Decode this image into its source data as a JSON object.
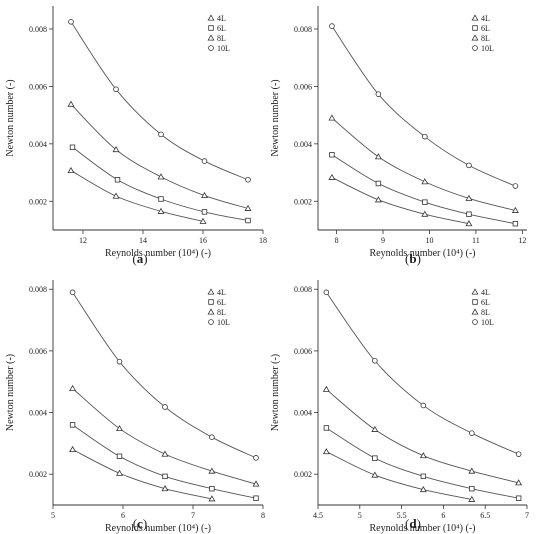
{
  "chart_data": [
    {
      "type": "line",
      "caption": "(a)",
      "xlabel": "Reynolds number (10⁴) (-)",
      "ylabel": "Newton number (-)",
      "xlim": [
        11,
        18
      ],
      "ylim": [
        0.001,
        0.0088
      ],
      "xticks": [
        "12",
        "14",
        "16",
        "18"
      ],
      "xtick_values": [
        12,
        14,
        16,
        18
      ],
      "yticks": [
        "0.002",
        "0.004",
        "0.006",
        "0.008"
      ],
      "ytick_values": [
        0.002,
        0.004,
        0.006,
        0.008
      ],
      "legend_position": "top-right",
      "series": [
        {
          "name": "4L",
          "marker": "triangle",
          "x": [
            11.6,
            13.1,
            14.6,
            16.0
          ],
          "y": [
            0.00307,
            0.00218,
            0.00165,
            0.0013
          ]
        },
        {
          "name": "6L",
          "marker": "square",
          "x": [
            11.65,
            13.15,
            14.6,
            16.05,
            17.5
          ],
          "y": [
            0.00388,
            0.00275,
            0.00208,
            0.00163,
            0.00133
          ]
        },
        {
          "name": "8L",
          "marker": "triangle",
          "x": [
            11.6,
            13.1,
            14.6,
            16.05,
            17.5
          ],
          "y": [
            0.00538,
            0.0038,
            0.00285,
            0.0022,
            0.00175
          ]
        },
        {
          "name": "10L",
          "marker": "circle",
          "x": [
            11.6,
            13.1,
            14.6,
            16.05,
            17.5
          ],
          "y": [
            0.00825,
            0.0059,
            0.00433,
            0.0034,
            0.00275
          ]
        }
      ]
    },
    {
      "type": "line",
      "caption": "(b)",
      "xlabel": "Reynolds number (10⁴) (-)",
      "ylabel": "Newton number (-)",
      "xlim": [
        7.6,
        12.1
      ],
      "ylim": [
        0.001,
        0.0088
      ],
      "xticks": [
        "8",
        "9",
        "10",
        "11",
        "12"
      ],
      "xtick_values": [
        8,
        9,
        10,
        11,
        12
      ],
      "yticks": [
        "0.002",
        "0.004",
        "0.006",
        "0.008"
      ],
      "ytick_values": [
        0.002,
        0.004,
        0.006,
        0.008
      ],
      "legend_position": "top-right",
      "series": [
        {
          "name": "4L",
          "marker": "triangle",
          "x": [
            7.9,
            8.9,
            9.9,
            10.85
          ],
          "y": [
            0.00283,
            0.00205,
            0.00155,
            0.00122
          ]
        },
        {
          "name": "6L",
          "marker": "square",
          "x": [
            7.9,
            8.9,
            9.9,
            10.85,
            11.85
          ],
          "y": [
            0.00362,
            0.00262,
            0.00197,
            0.00155,
            0.00122
          ]
        },
        {
          "name": "8L",
          "marker": "triangle",
          "x": [
            7.9,
            8.9,
            9.9,
            10.85,
            11.85
          ],
          "y": [
            0.0049,
            0.00355,
            0.00268,
            0.0021,
            0.00168
          ]
        },
        {
          "name": "10L",
          "marker": "circle",
          "x": [
            7.9,
            8.9,
            9.9,
            10.85,
            11.85
          ],
          "y": [
            0.0081,
            0.00573,
            0.00425,
            0.00325,
            0.00253
          ]
        }
      ]
    },
    {
      "type": "line",
      "caption": "(c)",
      "xlabel": "Reynolds number (10⁴) (-)",
      "ylabel": "Newton number (-)",
      "xlim": [
        5,
        8
      ],
      "ylim": [
        0.001,
        0.0083
      ],
      "xticks": [
        "5",
        "6",
        "7",
        "8"
      ],
      "xtick_values": [
        5,
        6,
        7,
        8
      ],
      "yticks": [
        "0.002",
        "0.004",
        "0.006",
        "0.008"
      ],
      "ytick_values": [
        0.002,
        0.004,
        0.006,
        0.008
      ],
      "legend_position": "top-right",
      "series": [
        {
          "name": "4L",
          "marker": "triangle",
          "x": [
            5.28,
            5.95,
            6.6,
            7.27
          ],
          "y": [
            0.0028,
            0.00203,
            0.00153,
            0.0012
          ]
        },
        {
          "name": "6L",
          "marker": "square",
          "x": [
            5.28,
            5.95,
            6.6,
            7.27,
            7.9
          ],
          "y": [
            0.0036,
            0.00258,
            0.00193,
            0.00153,
            0.00122
          ]
        },
        {
          "name": "8L",
          "marker": "triangle",
          "x": [
            5.28,
            5.95,
            6.6,
            7.27,
            7.9
          ],
          "y": [
            0.00478,
            0.00348,
            0.00265,
            0.0021,
            0.00168
          ]
        },
        {
          "name": "10L",
          "marker": "circle",
          "x": [
            5.28,
            5.95,
            6.6,
            7.27,
            7.9
          ],
          "y": [
            0.0079,
            0.00565,
            0.00418,
            0.0032,
            0.00253
          ]
        }
      ]
    },
    {
      "type": "line",
      "caption": "(d)",
      "xlabel": "Reynolds number (10⁴) (-)",
      "ylabel": "Newton number (-)",
      "xlim": [
        4.5,
        7
      ],
      "ylim": [
        0.001,
        0.0083
      ],
      "xticks": [
        "4.5",
        "5",
        "5.5",
        "6",
        "6.5",
        "7"
      ],
      "xtick_values": [
        4.5,
        5,
        5.5,
        6,
        6.5,
        7
      ],
      "yticks": [
        "0.002",
        "0.004",
        "0.006",
        "0.008"
      ],
      "ytick_values": [
        0.002,
        0.004,
        0.006,
        0.008
      ],
      "legend_position": "top-right",
      "series": [
        {
          "name": "4L",
          "marker": "triangle",
          "x": [
            4.6,
            5.18,
            5.76,
            6.34
          ],
          "y": [
            0.00273,
            0.00197,
            0.0015,
            0.00118
          ]
        },
        {
          "name": "6L",
          "marker": "square",
          "x": [
            4.6,
            5.18,
            5.76,
            6.34,
            6.9
          ],
          "y": [
            0.0035,
            0.00252,
            0.00193,
            0.00153,
            0.00122
          ]
        },
        {
          "name": "8L",
          "marker": "triangle",
          "x": [
            4.6,
            5.18,
            5.76,
            6.34,
            6.9
          ],
          "y": [
            0.00475,
            0.00345,
            0.0026,
            0.0021,
            0.00172
          ]
        },
        {
          "name": "10L",
          "marker": "circle",
          "x": [
            4.6,
            5.18,
            5.76,
            6.34,
            6.9
          ],
          "y": [
            0.0079,
            0.00568,
            0.00423,
            0.00333,
            0.00265
          ]
        }
      ]
    }
  ]
}
